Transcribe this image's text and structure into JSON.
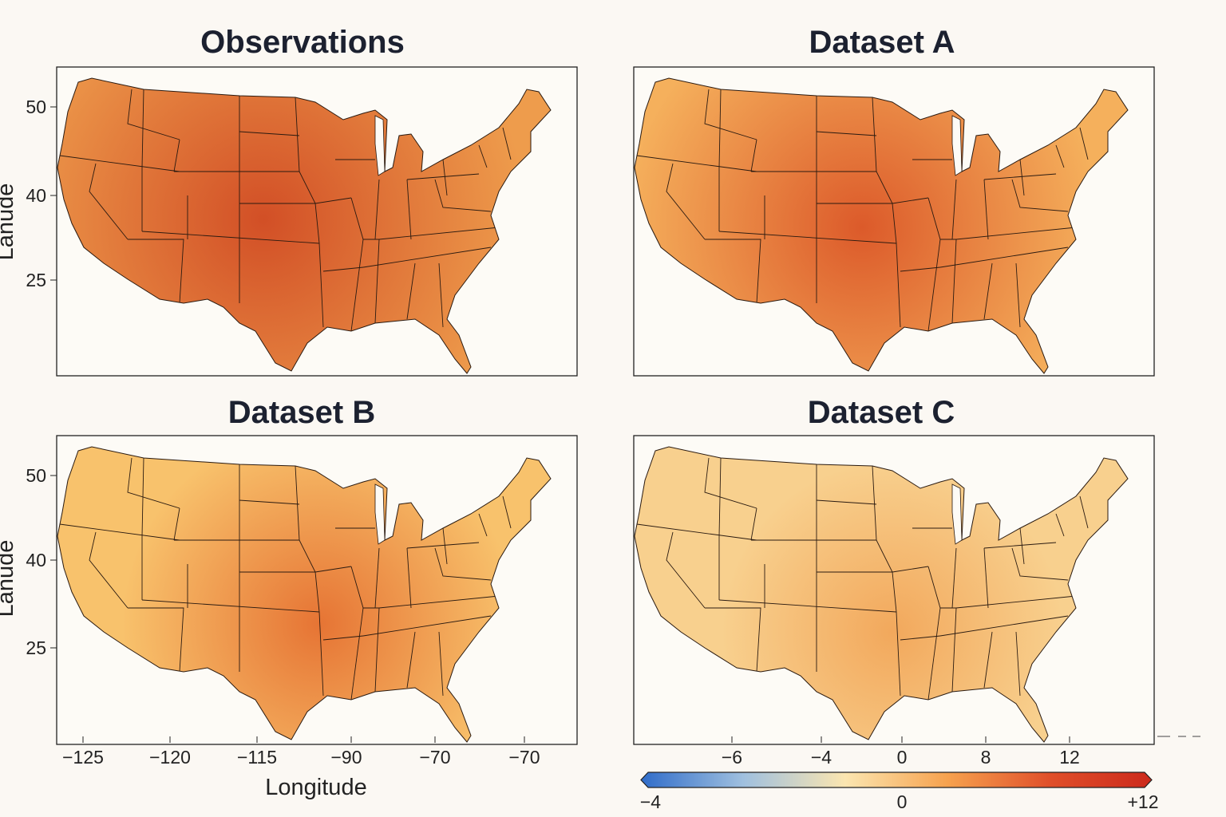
{
  "chart_data": [
    {
      "type": "heatmap",
      "title": "Observations",
      "ylabel": "Lanude",
      "yticks": [
        "50",
        "40",
        "25"
      ],
      "hotspot_color": "#d24f26",
      "base_color": "#ee9c4c",
      "hotspot": "central Plains / Kansas",
      "intensity": "high"
    },
    {
      "type": "heatmap",
      "title": "Dataset A",
      "hotspot_color": "#dc5a2a",
      "base_color": "#f5b05c",
      "hotspot": "Kansas / Missouri",
      "intensity": "moderate-high"
    },
    {
      "type": "heatmap",
      "title": "Dataset B",
      "ylabel": "Lanude",
      "yticks": [
        "50",
        "40",
        "25"
      ],
      "xticks": [
        "−125",
        "−120",
        "−115",
        "−90",
        "−70",
        "−70"
      ],
      "xlabel": "Longitude",
      "hotspot_color": "#e67434",
      "base_color": "#f8c26c",
      "hotspot": "Kansas / Missouri",
      "intensity": "moderate"
    },
    {
      "type": "heatmap",
      "title": "Dataset C",
      "xticks": [
        "−6",
        "−4",
        "0",
        "8",
        "12"
      ],
      "hotspot_color": "#f2a85c",
      "base_color": "#f8d08e",
      "hotspot": "Kansas / Missouri",
      "intensity": "low"
    }
  ],
  "colorbar": {
    "min_label": "−4",
    "mid_label": "0",
    "max_label": "+12",
    "range": [
      -4,
      12
    ],
    "colors": [
      "#2f6cc9",
      "#9fc0df",
      "#fbe6b0",
      "#f6a24e",
      "#e0502a",
      "#cc2a1c"
    ],
    "extend": "both"
  }
}
